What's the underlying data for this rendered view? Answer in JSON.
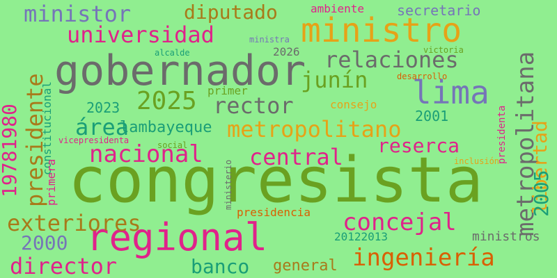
{
  "background": "#90ee90",
  "words": [
    {
      "id": "congresista",
      "text": "congresista",
      "color": "#6aa121"
    },
    {
      "id": "gobernador",
      "text": "gobernador",
      "color": "#6b6b6b"
    },
    {
      "id": "regional",
      "text": "regional",
      "color": "#e0228a"
    },
    {
      "id": "ministro",
      "text": "ministro",
      "color": "#e6a217"
    },
    {
      "id": "lima",
      "text": "lima",
      "color": "#7575b8"
    },
    {
      "id": "metropolitano",
      "text": "metropolitano",
      "color": "#e6a217"
    },
    {
      "id": "universidad",
      "text": "universidad",
      "color": "#e0228a"
    },
    {
      "id": "relaciones",
      "text": "relaciones",
      "color": "#6b6b6b"
    },
    {
      "id": "rector",
      "text": "rector",
      "color": "#6b6b6b"
    },
    {
      "id": "2025",
      "text": "2025",
      "color": "#6aa121"
    },
    {
      "id": "junin",
      "text": "junín",
      "color": "#6aa121"
    },
    {
      "id": "area",
      "text": "área",
      "color": "#1a9e77"
    },
    {
      "id": "nacional",
      "text": "nacional",
      "color": "#e0228a"
    },
    {
      "id": "central",
      "text": "central",
      "color": "#e0228a"
    },
    {
      "id": "reserca",
      "text": "reserca",
      "color": "#e0228a"
    },
    {
      "id": "ministor",
      "text": "ministor",
      "color": "#7575b8"
    },
    {
      "id": "diputado",
      "text": "diputado",
      "color": "#a87a1a"
    },
    {
      "id": "exteriores",
      "text": "exteriores",
      "color": "#a87a1a"
    },
    {
      "id": "concejal",
      "text": "concejal",
      "color": "#e0228a"
    },
    {
      "id": "ingenieria",
      "text": "ingeniería",
      "color": "#d95f02"
    },
    {
      "id": "director",
      "text": "director",
      "color": "#e0228a"
    },
    {
      "id": "banco",
      "text": "banco",
      "color": "#1a9e77"
    },
    {
      "id": "2000",
      "text": "2000",
      "color": "#7575b8"
    },
    {
      "id": "general",
      "text": "general",
      "color": "#a87a1a"
    },
    {
      "id": "secretario",
      "text": "secretario",
      "color": "#7575b8"
    },
    {
      "id": "ambiente",
      "text": "ambiente",
      "color": "#e0228a"
    },
    {
      "id": "lambayeque",
      "text": "lambayeque",
      "color": "#1a9e77"
    },
    {
      "id": "2023",
      "text": "2023",
      "color": "#1a9e77"
    },
    {
      "id": "2001",
      "text": "2001",
      "color": "#1a9e77"
    },
    {
      "id": "consejo",
      "text": "consejo",
      "color": "#e6a217"
    },
    {
      "id": "primer",
      "text": "primer",
      "color": "#6aa121"
    },
    {
      "id": "ministra",
      "text": "ministra",
      "color": "#7575b8"
    },
    {
      "id": "alcalde",
      "text": "alcalde",
      "color": "#1a9e77"
    },
    {
      "id": "2026",
      "text": "2026",
      "color": "#6b6b6b"
    },
    {
      "id": "victoria",
      "text": "victoria",
      "color": "#6aa121"
    },
    {
      "id": "desarrollo",
      "text": "desarrollo",
      "color": "#d95f02"
    },
    {
      "id": "vicepresidenta",
      "text": "vicepresidenta",
      "color": "#e0228a"
    },
    {
      "id": "social",
      "text": "social",
      "color": "#6aa121"
    },
    {
      "id": "inclusion",
      "text": "inclusión",
      "color": "#e6a217"
    },
    {
      "id": "presidencia",
      "text": "presidencia",
      "color": "#d95f02"
    },
    {
      "id": "20122013",
      "text": "20122013",
      "color": "#1a9e77"
    },
    {
      "id": "ministros",
      "text": "ministros",
      "color": "#6b6b6b"
    },
    {
      "id": "metropolitana",
      "text": "metropolitana",
      "color": "#6b6b6b",
      "vertical": true
    },
    {
      "id": "libertad",
      "text": "libertad",
      "color": "#e6a217",
      "vertical": true
    },
    {
      "id": "2005",
      "text": "2005",
      "color": "#1a9e77",
      "vertical": true
    },
    {
      "id": "presidente",
      "text": "presidente",
      "color": "#a87a1a",
      "vertical": true
    },
    {
      "id": "19781980",
      "text": "19781980",
      "color": "#e0228a",
      "vertical": true
    },
    {
      "id": "constitucional",
      "text": "constitucional",
      "color": "#1a9e77",
      "vertical": true
    },
    {
      "id": "primera",
      "text": "primera",
      "color": "#e0228a",
      "vertical": true
    },
    {
      "id": "ministerio",
      "text": "ministerio",
      "color": "#6b6b6b",
      "vertical": true
    },
    {
      "id": "presidenta",
      "text": "presidenta",
      "color": "#e0228a",
      "vertical": true
    }
  ]
}
